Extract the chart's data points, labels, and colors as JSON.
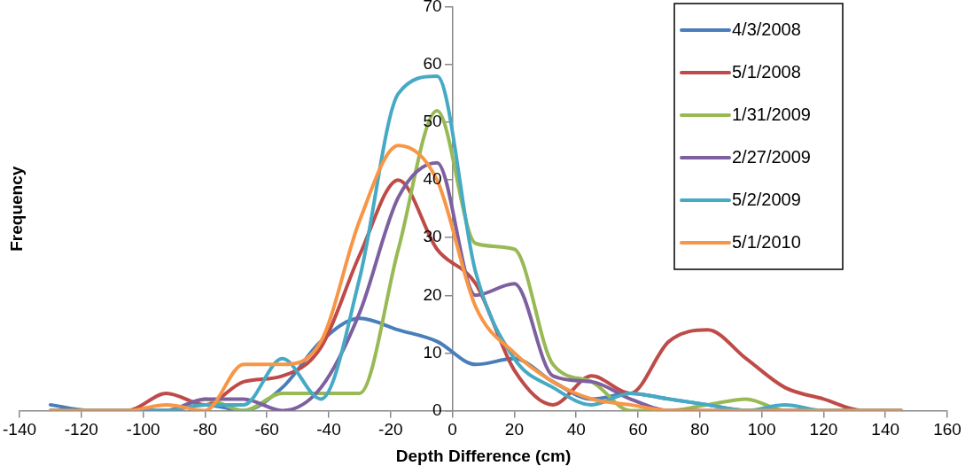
{
  "chart_data": {
    "type": "line",
    "xlabel": "Depth Difference (cm)",
    "ylabel": "Frequency",
    "x": [
      -130,
      -117.5,
      -105,
      -92.5,
      -80,
      -67.5,
      -55,
      -42.5,
      -30,
      -17.5,
      -5,
      7.5,
      20,
      32.5,
      45,
      57.5,
      70,
      82.5,
      95,
      107.5,
      120,
      132.5,
      145
    ],
    "series": [
      {
        "name": "4/3/2008",
        "color": "#4a7ebb",
        "values": [
          1,
          0,
          0,
          0,
          1,
          0,
          4,
          12,
          16,
          14,
          12,
          8,
          9,
          5,
          2,
          3,
          2,
          1,
          0,
          0,
          0,
          0,
          0
        ]
      },
      {
        "name": "5/1/2008",
        "color": "#be4b48",
        "values": [
          0,
          0,
          0,
          3,
          1,
          5,
          6,
          11,
          27,
          40,
          28,
          22,
          7,
          1,
          6,
          3,
          12,
          14,
          9,
          4,
          2,
          0,
          0
        ]
      },
      {
        "name": "1/31/2009",
        "color": "#98b954",
        "values": [
          0,
          0,
          0,
          0,
          2,
          0,
          3,
          3,
          3,
          28,
          52,
          29,
          28,
          8,
          5,
          0,
          0,
          1,
          2,
          0,
          0,
          0,
          0
        ]
      },
      {
        "name": "2/27/2009",
        "color": "#7d60a0",
        "values": [
          0,
          0,
          0,
          0,
          2,
          2,
          0,
          4,
          17,
          37,
          43,
          20,
          22,
          6,
          5,
          2,
          0,
          0,
          0,
          0,
          0,
          0,
          0
        ]
      },
      {
        "name": "5/2/2009",
        "color": "#46aac5",
        "values": [
          0,
          0,
          0,
          0,
          1,
          1,
          9,
          2,
          23,
          55,
          58,
          24,
          9,
          4,
          1,
          3,
          2,
          1,
          0,
          1,
          0,
          0,
          0
        ]
      },
      {
        "name": "5/1/2010",
        "color": "#f79646",
        "values": [
          0,
          0,
          0,
          1,
          0,
          8,
          8,
          12,
          33,
          46,
          40,
          18,
          10,
          5,
          2,
          1,
          0,
          0,
          0,
          0,
          0,
          0,
          0
        ]
      }
    ],
    "xlim": [
      -140,
      160
    ],
    "xticks": [
      -140,
      -120,
      -100,
      -80,
      -60,
      -40,
      -20,
      0,
      20,
      40,
      60,
      80,
      100,
      120,
      140,
      160
    ],
    "ylim": [
      0,
      70
    ],
    "yticks": [
      0,
      10,
      20,
      30,
      40,
      50,
      60,
      70
    ],
    "grid": false,
    "legend": "top right",
    "marker": "none",
    "line_style": "solid"
  }
}
